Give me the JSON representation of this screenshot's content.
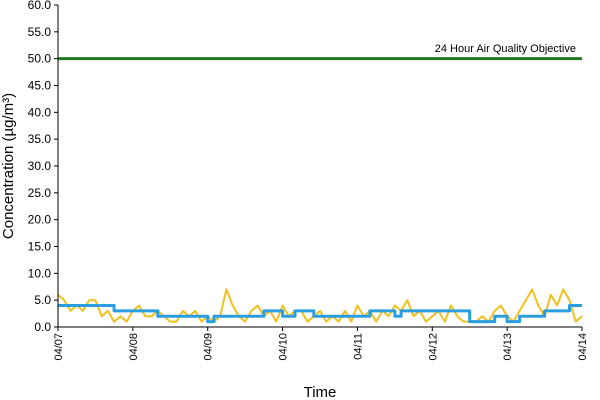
{
  "chart_data": {
    "type": "line",
    "xlabel": "Time",
    "ylabel": "Concentration (µg/m³)",
    "ylim": [
      0,
      60
    ],
    "yticks": [
      "0.0",
      "5.0",
      "10.0",
      "15.0",
      "20.0",
      "25.0",
      "30.0",
      "35.0",
      "40.0",
      "45.0",
      "50.0",
      "55.0",
      "60.0"
    ],
    "x_range": [
      "04/07 00:00",
      "04/14 00:00"
    ],
    "xticks": [
      "04/07",
      "04/08",
      "04/09",
      "04/10",
      "04/11",
      "04/12",
      "04/13",
      "04/14"
    ],
    "grid": false,
    "objective": {
      "label": "24 Hour Air Quality Objective",
      "value": 50.0,
      "color": "#1f7a1f"
    },
    "series": [
      {
        "color": "#f0c020",
        "x": [
          "04/07 00:00",
          "04/07 02:00",
          "04/07 04:00",
          "04/07 06:00",
          "04/07 08:00",
          "04/07 10:00",
          "04/07 12:00",
          "04/07 14:00",
          "04/07 16:00",
          "04/07 18:00",
          "04/07 20:00",
          "04/07 22:00",
          "04/08 00:00",
          "04/08 02:00",
          "04/08 04:00",
          "04/08 06:00",
          "04/08 08:00",
          "04/08 10:00",
          "04/08 12:00",
          "04/08 14:00",
          "04/08 16:00",
          "04/08 18:00",
          "04/08 20:00",
          "04/08 22:00",
          "04/09 00:00",
          "04/09 02:00",
          "04/09 04:00",
          "04/09 06:00",
          "04/09 08:00",
          "04/09 10:00",
          "04/09 12:00",
          "04/09 14:00",
          "04/09 16:00",
          "04/09 18:00",
          "04/09 20:00",
          "04/09 22:00",
          "04/10 00:00",
          "04/10 02:00",
          "04/10 04:00",
          "04/10 06:00",
          "04/10 08:00",
          "04/10 10:00",
          "04/10 12:00",
          "04/10 14:00",
          "04/10 16:00",
          "04/10 18:00",
          "04/10 20:00",
          "04/10 22:00",
          "04/11 00:00",
          "04/11 02:00",
          "04/11 04:00",
          "04/11 06:00",
          "04/11 08:00",
          "04/11 10:00",
          "04/11 12:00",
          "04/11 14:00",
          "04/11 16:00",
          "04/11 18:00",
          "04/11 20:00",
          "04/11 22:00",
          "04/12 00:00",
          "04/12 02:00",
          "04/12 04:00",
          "04/12 06:00",
          "04/12 08:00",
          "04/12 10:00",
          "04/12 12:00",
          "04/12 14:00",
          "04/12 16:00",
          "04/12 18:00",
          "04/12 20:00",
          "04/12 22:00",
          "04/13 00:00",
          "04/13 02:00",
          "04/13 04:00",
          "04/13 06:00",
          "04/13 08:00",
          "04/13 10:00",
          "04/13 12:00",
          "04/13 14:00",
          "04/13 16:00",
          "04/13 18:00",
          "04/13 20:00",
          "04/13 22:00",
          "04/14 00:00"
        ],
        "values": [
          6,
          5,
          3,
          4,
          3,
          5,
          5,
          2,
          3,
          1,
          2,
          1,
          3,
          4,
          2,
          2,
          3,
          2,
          1,
          1,
          3,
          2,
          3,
          1,
          2,
          1,
          2,
          7,
          4,
          2,
          1,
          3,
          4,
          2,
          3,
          1,
          4,
          2,
          3,
          3,
          1,
          2,
          3,
          1,
          2,
          1,
          3,
          1,
          4,
          2,
          3,
          1,
          3,
          2,
          4,
          3,
          5,
          2,
          3,
          1,
          2,
          3,
          1,
          4,
          2,
          1,
          1,
          1,
          2,
          1,
          3,
          4,
          2,
          1,
          3,
          5,
          7,
          4,
          2,
          6,
          4,
          7,
          5,
          1,
          2
        ]
      },
      {
        "color": "#2a9ee0",
        "x": [
          "04/07 00:00",
          "04/07 18:00",
          "04/07 18:00",
          "04/08 08:00",
          "04/08 08:00",
          "04/09 00:00",
          "04/09 00:00",
          "04/09 02:00",
          "04/09 02:00",
          "04/09 18:00",
          "04/09 18:00",
          "04/10 00:00",
          "04/10 00:00",
          "04/10 04:00",
          "04/10 04:00",
          "04/10 10:00",
          "04/10 10:00",
          "04/11 04:00",
          "04/11 04:00",
          "04/11 12:00",
          "04/11 12:00",
          "04/11 14:00",
          "04/11 14:00",
          "04/12 12:00",
          "04/12 12:00",
          "04/12 20:00",
          "04/12 20:00",
          "04/13 00:00",
          "04/13 00:00",
          "04/13 04:00",
          "04/13 04:00",
          "04/13 12:00",
          "04/13 12:00",
          "04/13 20:00",
          "04/13 20:00",
          "04/14 00:00"
        ],
        "values": [
          4,
          4,
          3,
          3,
          2,
          2,
          1,
          1,
          2,
          2,
          3,
          3,
          2,
          2,
          3,
          3,
          2,
          2,
          3,
          3,
          2,
          2,
          3,
          3,
          1,
          1,
          2,
          2,
          1,
          1,
          2,
          2,
          3,
          3,
          4,
          4
        ]
      }
    ]
  }
}
